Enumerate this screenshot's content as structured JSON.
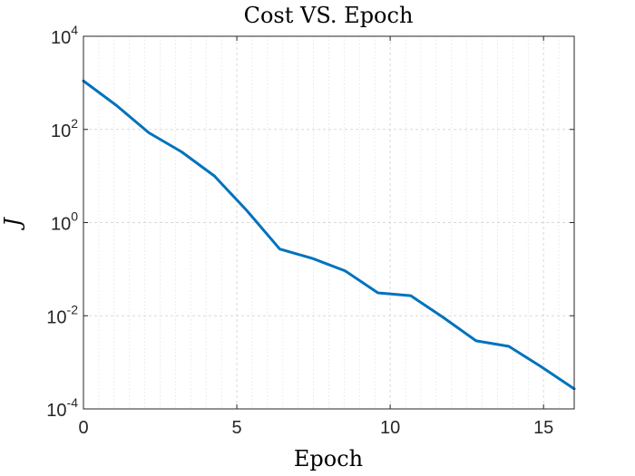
{
  "chart_data": {
    "type": "line",
    "title": "Cost VS. Epoch",
    "xlabel": "Epoch",
    "ylabel": "J",
    "xlim": [
      0,
      16
    ],
    "ylim": [
      0.0001,
      10000
    ],
    "yscale": "log",
    "grid": true,
    "minor_grid": true,
    "x_ticks": [
      0,
      5,
      10,
      15
    ],
    "x_tick_labels": [
      "0",
      "5",
      "10",
      "15"
    ],
    "y_ticks": [
      0.0001,
      0.01,
      1,
      100,
      10000
    ],
    "y_tick_labels": [
      {
        "base": "10",
        "exp": "-4"
      },
      {
        "base": "10",
        "exp": "-2"
      },
      {
        "base": "10",
        "exp": "0"
      },
      {
        "base": "10",
        "exp": "2"
      },
      {
        "base": "10",
        "exp": "4"
      }
    ],
    "series": [
      {
        "color": "#0072BD",
        "x": [
          0,
          1.07,
          2.13,
          3.2,
          4.27,
          5.33,
          6.4,
          7.47,
          8.53,
          9.6,
          10.67,
          11.73,
          12.8,
          13.87,
          14.93,
          16
        ],
        "values": [
          1100,
          330,
          85,
          33,
          10,
          1.8,
          0.27,
          0.17,
          0.092,
          0.031,
          0.027,
          0.0092,
          0.0029,
          0.0022,
          0.0008,
          0.00027
        ]
      }
    ]
  }
}
